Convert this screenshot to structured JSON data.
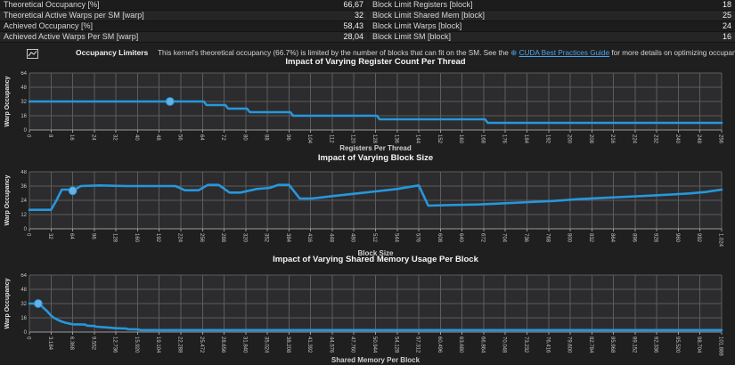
{
  "header_table": {
    "left_rows": [
      {
        "label": "Theoretical Occupancy [%]",
        "value": "66,67"
      },
      {
        "label": "Theoretical Active Warps per SM [warp]",
        "value": "32"
      },
      {
        "label": "Achieved Occupancy [%]",
        "value": "58,43"
      },
      {
        "label": "Achieved Active Warps Per SM [warp]",
        "value": "28,04"
      }
    ],
    "right_rows": [
      {
        "label": "Block Limit Registers [block]",
        "value": "18"
      },
      {
        "label": "Block Limit Shared Mem [block]",
        "value": "25"
      },
      {
        "label": "Block Limit Warps [block]",
        "value": "24"
      },
      {
        "label": "Block Limit SM [block]",
        "value": "16"
      }
    ]
  },
  "limiter": {
    "icon": "line-chart-icon",
    "title": "Occupancy Limiters",
    "text_before": "This kernel's theoretical occupancy (66.7%) is limited by the number of blocks that can fit on the SM. See the ",
    "link_icon": "globe-link-icon",
    "link_text": "CUDA Best Practices Guide",
    "text_after": " for more details on optimizing occupancy."
  },
  "colors": {
    "accent_line": "#2697dd",
    "marker_fill": "#66b2e4",
    "link": "#4da3e8",
    "grid": "#5c5c5c",
    "axis": "#999999",
    "plot_bg": "#2c2c2e",
    "tick_text": "#c4c4c4",
    "page_bg": "#1f1f1f"
  },
  "chart_data": [
    {
      "type": "line",
      "title": "Impact of Varying Register Count Per Thread",
      "xlabel": "Registers Per Thread",
      "ylabel": "Warp Occupancy",
      "xmin": 0,
      "xmax": 256,
      "xtick_step": 8,
      "yticks": [
        0,
        16,
        32,
        48,
        64
      ],
      "ymax": 64,
      "grid": true,
      "points": [
        [
          0,
          32
        ],
        [
          64.5,
          32
        ],
        [
          65.5,
          28
        ],
        [
          72.5,
          28
        ],
        [
          73.5,
          24
        ],
        [
          80.5,
          24
        ],
        [
          81.5,
          20
        ],
        [
          96.5,
          20
        ],
        [
          97.5,
          16
        ],
        [
          128.5,
          16
        ],
        [
          129.5,
          12
        ],
        [
          168.5,
          12
        ],
        [
          169.5,
          8
        ],
        [
          256,
          8
        ]
      ],
      "marker": [
        52,
        32
      ]
    },
    {
      "type": "line",
      "title": "Impact of Varying Block Size",
      "xlabel": "Block Size",
      "ylabel": "Warp Occupancy",
      "xmin": 0,
      "xmax": 1024,
      "xtick_step": 32,
      "yticks": [
        0,
        12,
        24,
        36,
        48
      ],
      "ymax": 48,
      "grid": true,
      "points": [
        [
          0,
          16
        ],
        [
          32,
          16
        ],
        [
          40,
          24
        ],
        [
          48,
          33
        ],
        [
          60,
          33
        ],
        [
          64,
          32
        ],
        [
          76,
          36
        ],
        [
          104,
          36.5
        ],
        [
          144,
          36
        ],
        [
          216,
          36
        ],
        [
          230,
          32.5
        ],
        [
          250,
          32.5
        ],
        [
          264,
          37
        ],
        [
          280,
          37
        ],
        [
          296,
          30.5
        ],
        [
          312,
          30.5
        ],
        [
          336,
          33.5
        ],
        [
          356,
          34.5
        ],
        [
          368,
          37
        ],
        [
          384,
          37
        ],
        [
          400,
          25.5
        ],
        [
          418,
          25.5
        ],
        [
          448,
          27.5
        ],
        [
          480,
          29.5
        ],
        [
          512,
          31.5
        ],
        [
          544,
          33.5
        ],
        [
          564,
          35.5
        ],
        [
          576,
          36.5
        ],
        [
          590,
          19.5
        ],
        [
          624,
          20
        ],
        [
          664,
          20.5
        ],
        [
          704,
          21.5
        ],
        [
          740,
          22.5
        ],
        [
          776,
          23.5
        ],
        [
          812,
          25
        ],
        [
          848,
          26
        ],
        [
          884,
          27
        ],
        [
          920,
          28
        ],
        [
          948,
          28.8
        ],
        [
          976,
          29.8
        ],
        [
          1000,
          31
        ],
        [
          1024,
          33
        ]
      ],
      "marker": [
        64,
        32
      ]
    },
    {
      "type": "line",
      "title": "Impact of Varying Shared Memory Usage Per Block",
      "xlabel": "Shared Memory Per Block",
      "ylabel": "Warp Occupancy",
      "xmin": 0,
      "xmax": 101888,
      "xtick_step": 3184,
      "yticks": [
        0,
        16,
        32,
        48,
        64
      ],
      "ymax": 64,
      "grid": true,
      "points": [
        [
          0,
          32
        ],
        [
          1300,
          32
        ],
        [
          1700,
          30
        ],
        [
          2100,
          27
        ],
        [
          2600,
          23.5
        ],
        [
          3184,
          18.5
        ],
        [
          3600,
          16
        ],
        [
          4100,
          14
        ],
        [
          4700,
          12
        ],
        [
          5300,
          10.5
        ],
        [
          6000,
          9.3
        ],
        [
          6368,
          8.7
        ],
        [
          8200,
          8.4
        ],
        [
          8500,
          7.2
        ],
        [
          9552,
          6.8
        ],
        [
          9900,
          6
        ],
        [
          11000,
          5.4
        ],
        [
          12000,
          4.8
        ],
        [
          12736,
          4.3
        ],
        [
          14200,
          4
        ],
        [
          14500,
          3.2
        ],
        [
          15900,
          3
        ],
        [
          16400,
          2.2
        ],
        [
          101888,
          2.2
        ]
      ],
      "marker": [
        1300,
        32
      ]
    }
  ]
}
